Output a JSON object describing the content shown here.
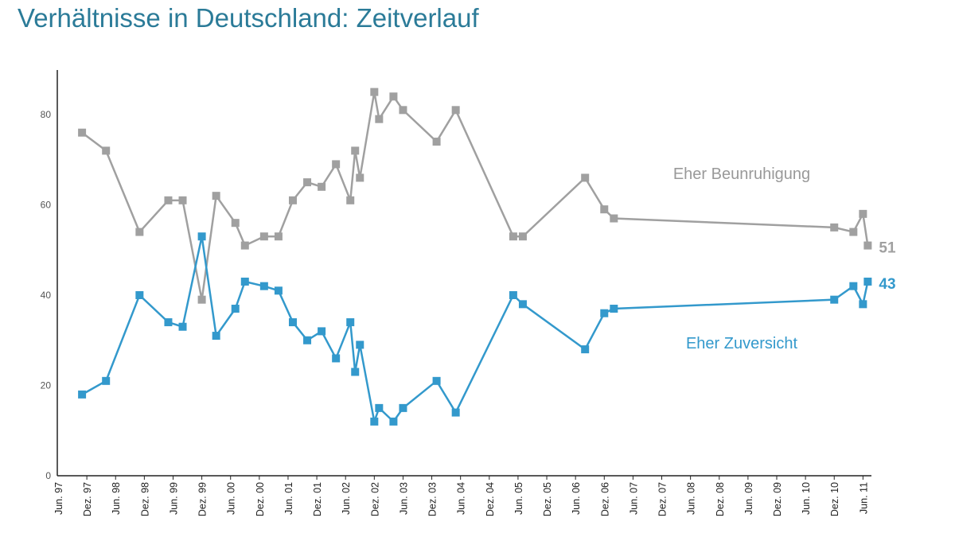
{
  "title": "Verhältnisse in Deutschland: Zeitverlauf",
  "chart_data": {
    "type": "line",
    "title": "Verhältnisse in Deutschland: Zeitverlauf",
    "xlabel": "",
    "ylabel": "",
    "ylim": [
      0,
      90
    ],
    "yticks": [
      0,
      20,
      40,
      60,
      80
    ],
    "grid": false,
    "x_tick_labels": [
      "Jun. 97",
      "Dez. 97",
      "Jun. 98",
      "Dez. 98",
      "Jun. 99",
      "Dez. 99",
      "Jun. 00",
      "Dez. 00",
      "Jun. 01",
      "Dez. 01",
      "Jun. 02",
      "Dez. 02",
      "Jun. 03",
      "Dez. 03",
      "Jun. 04",
      "Dez. 04",
      "Jun. 05",
      "Dez. 05",
      "Jun. 06",
      "Dez. 06",
      "Jun. 07",
      "Dez. 07",
      "Jun. 08",
      "Dez. 08",
      "Jun. 09",
      "Dez. 09",
      "Jun. 10",
      "Dez. 10",
      "Jun. 11"
    ],
    "x": [
      "1997-11",
      "1998-04",
      "1998-11",
      "1999-05",
      "1999-08",
      "1999-12",
      "2000-03",
      "2000-07",
      "2000-09",
      "2001-01",
      "2001-04",
      "2001-07",
      "2001-10",
      "2002-01",
      "2002-04",
      "2002-07",
      "2002-08",
      "2002-09",
      "2002-12",
      "2003-01",
      "2003-04",
      "2003-06",
      "2004-01",
      "2004-05",
      "2005-05",
      "2005-07",
      "2006-08",
      "2006-12",
      "2007-02",
      "2010-12",
      "2011-04",
      "2011-06",
      "2011-07"
    ],
    "series": [
      {
        "name": "Eher Beunruhigung",
        "color": "#a0a0a0",
        "end_label": "51",
        "values": [
          76,
          72,
          54,
          61,
          61,
          39,
          62,
          56,
          51,
          53,
          53,
          61,
          65,
          64,
          69,
          61,
          72,
          66,
          85,
          79,
          84,
          81,
          74,
          81,
          53,
          53,
          66,
          59,
          57,
          55,
          54,
          58,
          51
        ]
      },
      {
        "name": "Eher Zuversicht",
        "color": "#3399cc",
        "end_label": "43",
        "values": [
          18,
          21,
          40,
          34,
          33,
          53,
          31,
          37,
          43,
          42,
          41,
          34,
          30,
          32,
          26,
          34,
          23,
          29,
          12,
          15,
          12,
          15,
          21,
          14,
          40,
          38,
          28,
          36,
          37,
          39,
          42,
          38,
          43
        ]
      }
    ]
  }
}
